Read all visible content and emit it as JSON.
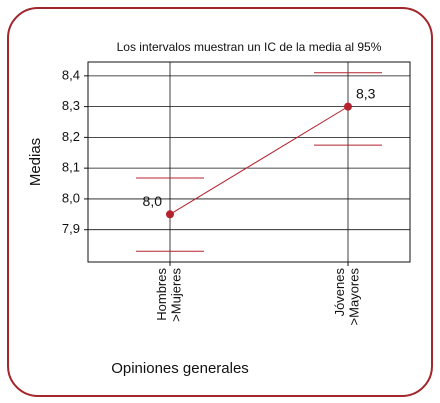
{
  "chart_data": {
    "type": "interval",
    "subtitle": "Los intervalos muestran un IC de la media al 95%",
    "y_label": "Medias",
    "x_label": "Opiniones generales",
    "categories": [
      "Hombres\n>Mujeres",
      "Jóvenes\n>Mayores"
    ],
    "series": [
      {
        "color": "#b5222e",
        "values": [
          7.95,
          8.3
        ],
        "value_labels": [
          "8,0",
          "8,3"
        ],
        "lower": [
          7.83,
          8.175
        ],
        "upper": [
          8.068,
          8.41
        ]
      }
    ],
    "ylim": [
      7.795,
      8.445
    ],
    "yticks": [
      {
        "value": 7.9,
        "label": "7,9"
      },
      {
        "value": 8.0,
        "label": "8,0"
      },
      {
        "value": 8.1,
        "label": "8,1"
      },
      {
        "value": 8.2,
        "label": "8,2"
      },
      {
        "value": 8.3,
        "label": "8,3"
      },
      {
        "value": 8.4,
        "label": "8,4"
      }
    ],
    "grid": true
  }
}
